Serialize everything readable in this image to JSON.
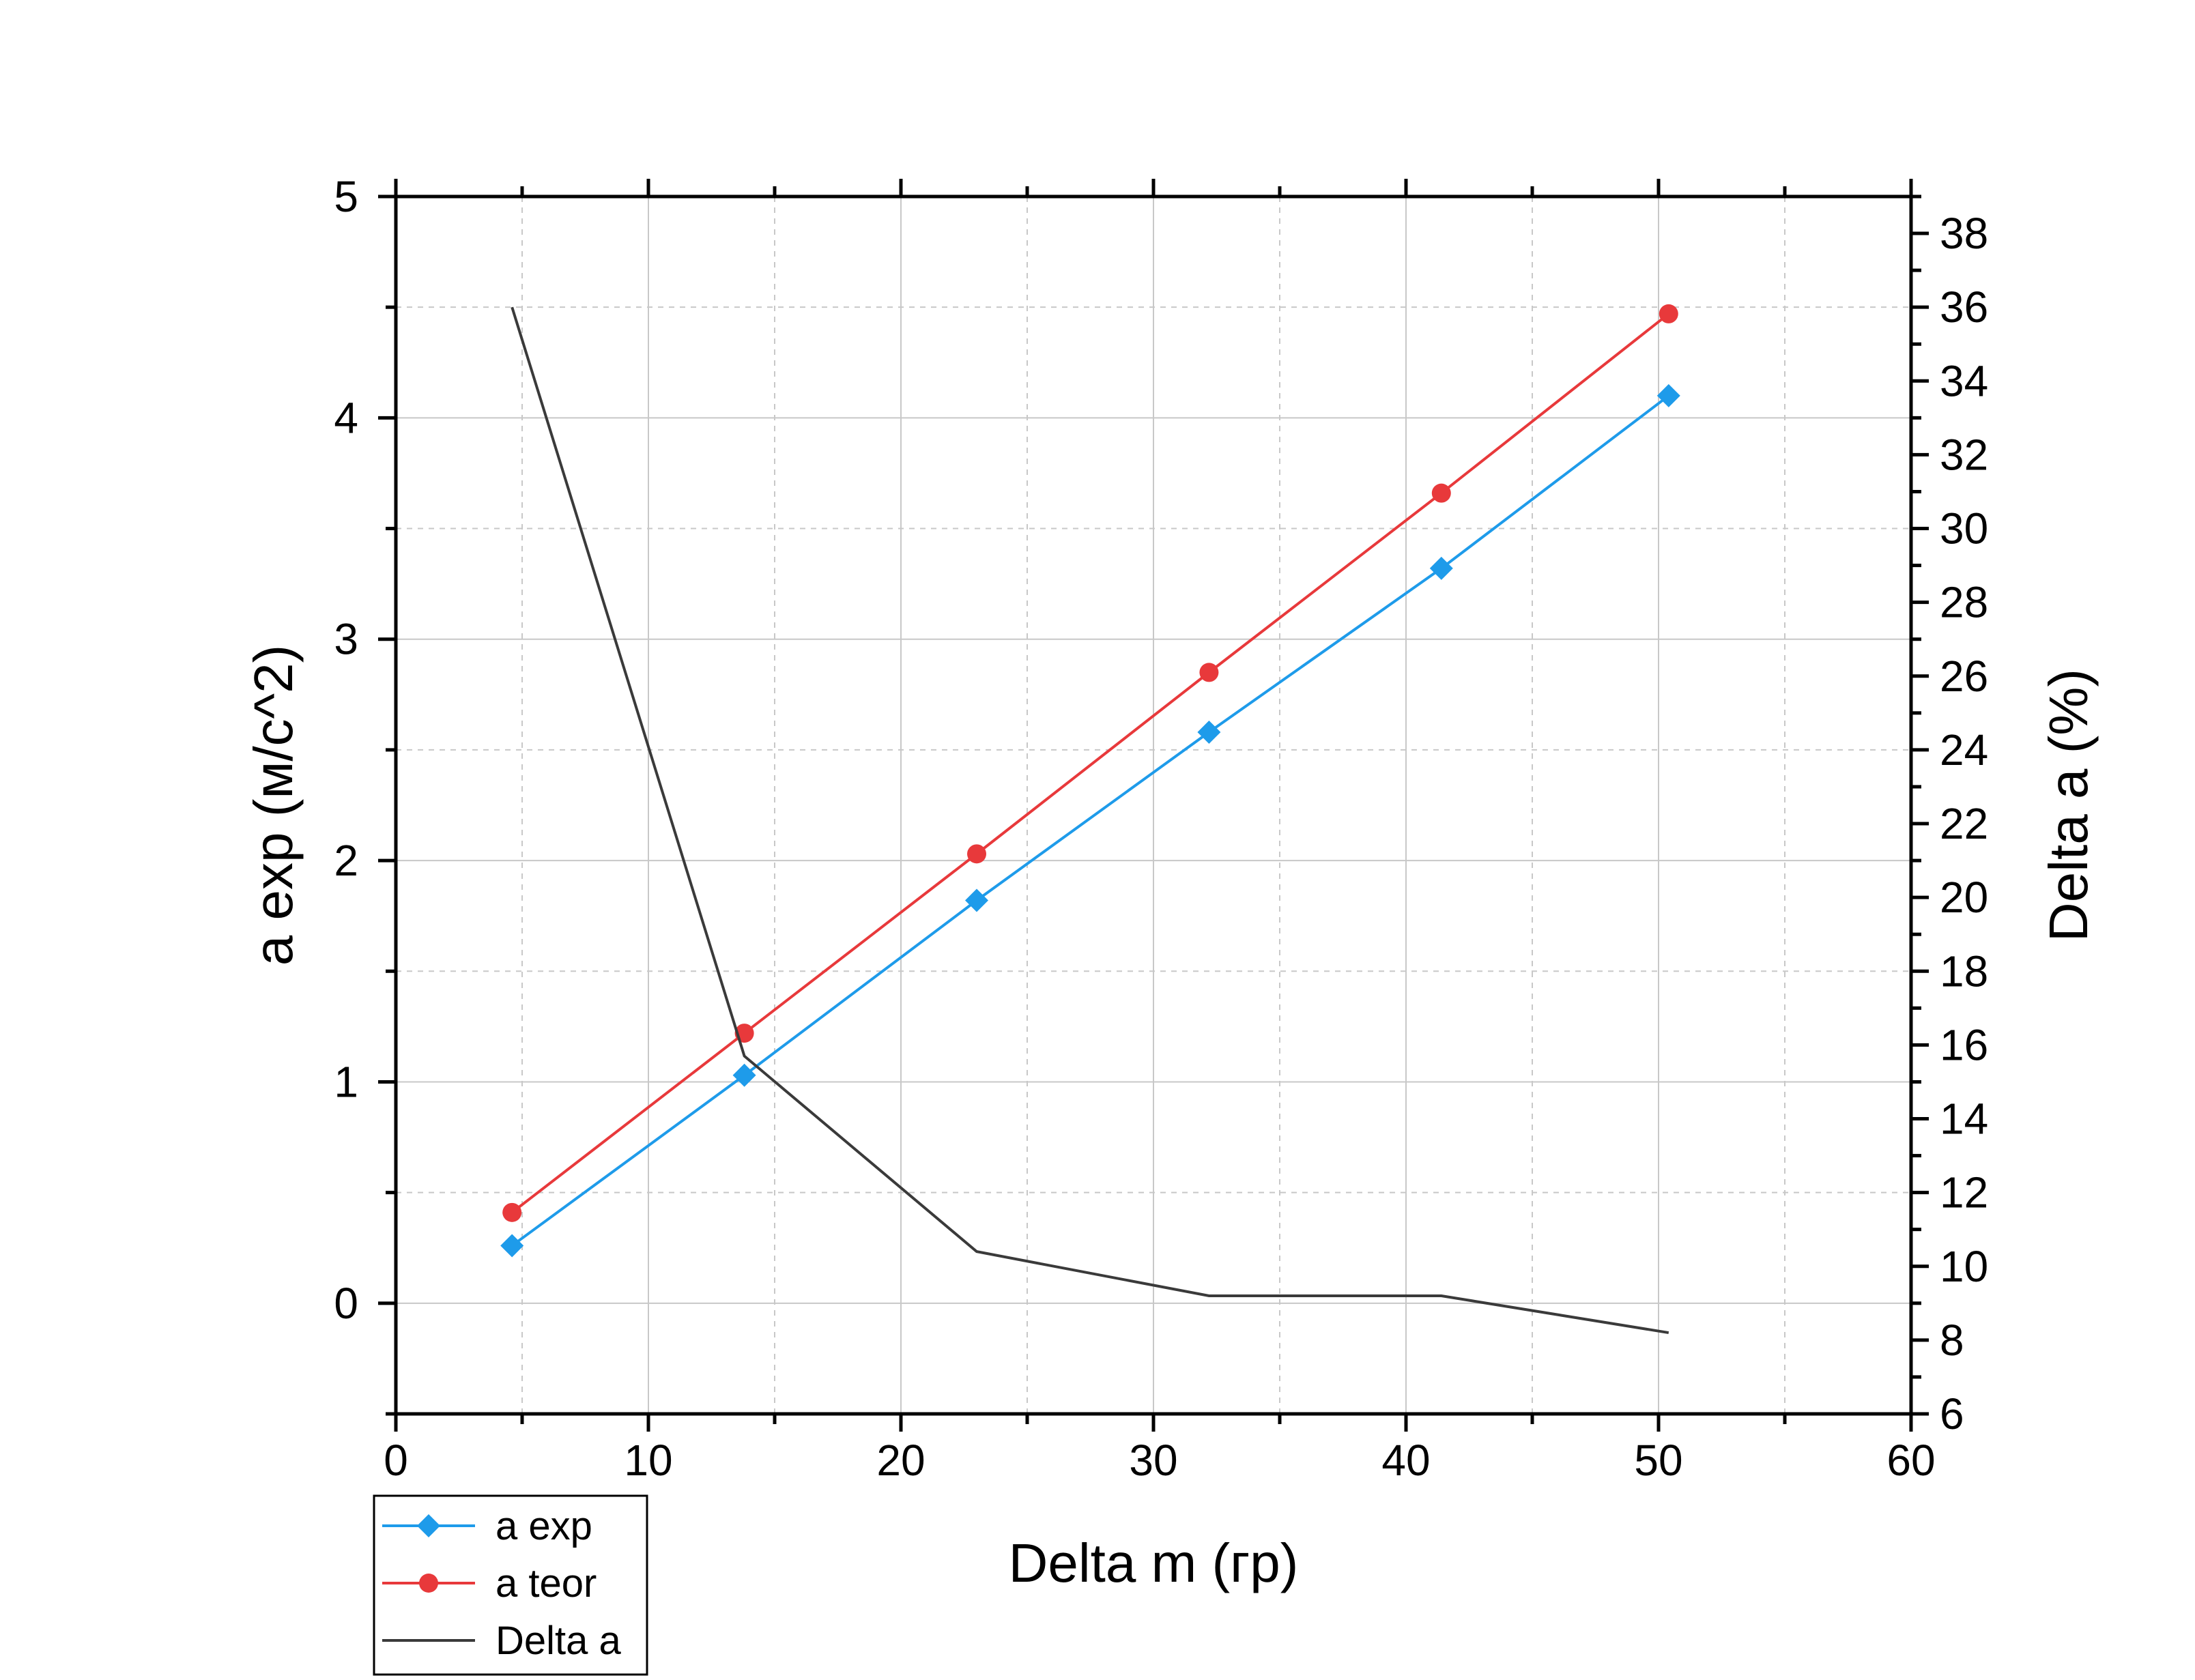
{
  "chart_data": {
    "type": "line",
    "xlabel": "Delta m (гр)",
    "ylabel": "a exp (м/с^2)",
    "y2label": "Delta a (%)",
    "xlim": [
      0,
      60
    ],
    "ylim": [
      -0.5,
      5
    ],
    "y2lim": [
      6,
      39
    ],
    "x_ticks": [
      "0",
      "10",
      "20",
      "30",
      "40",
      "50",
      "60"
    ],
    "y_ticks": [
      "0",
      "1",
      "2",
      "3",
      "4",
      "5"
    ],
    "y2_ticks": [
      "6",
      "8",
      "10",
      "12",
      "14",
      "16",
      "18",
      "20",
      "22",
      "24",
      "26",
      "28",
      "30",
      "32",
      "34",
      "36",
      "38"
    ],
    "grid": true,
    "legend_position": "bottom-left, below plot",
    "series": [
      {
        "name": "a exp",
        "axis": "left",
        "color": "#1E9BEA",
        "marker": "diamond",
        "x": [
          4.6,
          13.8,
          23.0,
          32.2,
          41.4,
          50.4
        ],
        "y": [
          0.26,
          1.03,
          1.82,
          2.58,
          3.32,
          4.1
        ]
      },
      {
        "name": "a teor",
        "axis": "left",
        "color": "#E8393B",
        "marker": "circle",
        "x": [
          4.6,
          13.8,
          23.0,
          32.2,
          41.4,
          50.4
        ],
        "y": [
          0.41,
          1.22,
          2.03,
          2.85,
          3.66,
          4.47
        ]
      },
      {
        "name": "Delta a",
        "axis": "right",
        "color": "#3A3A3A",
        "marker": "none",
        "x": [
          4.6,
          13.8,
          23.0,
          32.2,
          41.4,
          50.4
        ],
        "y": [
          36.0,
          15.7,
          10.4,
          9.2,
          9.2,
          8.2
        ]
      }
    ]
  }
}
